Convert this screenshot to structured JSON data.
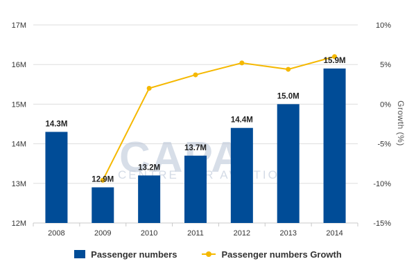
{
  "watermark": {
    "text": "CAPA",
    "subtext": "CENTRE FOR AVIATION"
  },
  "colors": {
    "bars": "#004c97",
    "line": "#f5b800",
    "grid": "#dddddd"
  },
  "chart_data": {
    "type": "bar+line",
    "categories": [
      "2008",
      "2009",
      "2010",
      "2011",
      "2012",
      "2013",
      "2014"
    ],
    "series": [
      {
        "name": "Passenger numbers",
        "kind": "bar",
        "axis": "left",
        "values": [
          14.3,
          12.9,
          13.2,
          13.7,
          14.4,
          15.0,
          15.9
        ],
        "labels": [
          "14.3M",
          "12.9M",
          "13.2M",
          "13.7M",
          "14.4M",
          "15.0M",
          "15.9M"
        ]
      },
      {
        "name": "Passenger numbers Growth",
        "kind": "line",
        "axis": "right",
        "values": [
          null,
          -9.6,
          2.0,
          3.7,
          5.2,
          4.4,
          6.0
        ]
      }
    ],
    "left_axis": {
      "ylim": [
        12,
        17
      ],
      "ticks": [
        "12M",
        "13M",
        "14M",
        "15M",
        "16M",
        "17M"
      ]
    },
    "right_axis": {
      "label": "Growth (%)",
      "ylim": [
        -15,
        10
      ],
      "ticks": [
        "-15%",
        "-10%",
        "-5%",
        "0%",
        "5%",
        "10%"
      ]
    },
    "grid": true,
    "legend": "bottom"
  }
}
